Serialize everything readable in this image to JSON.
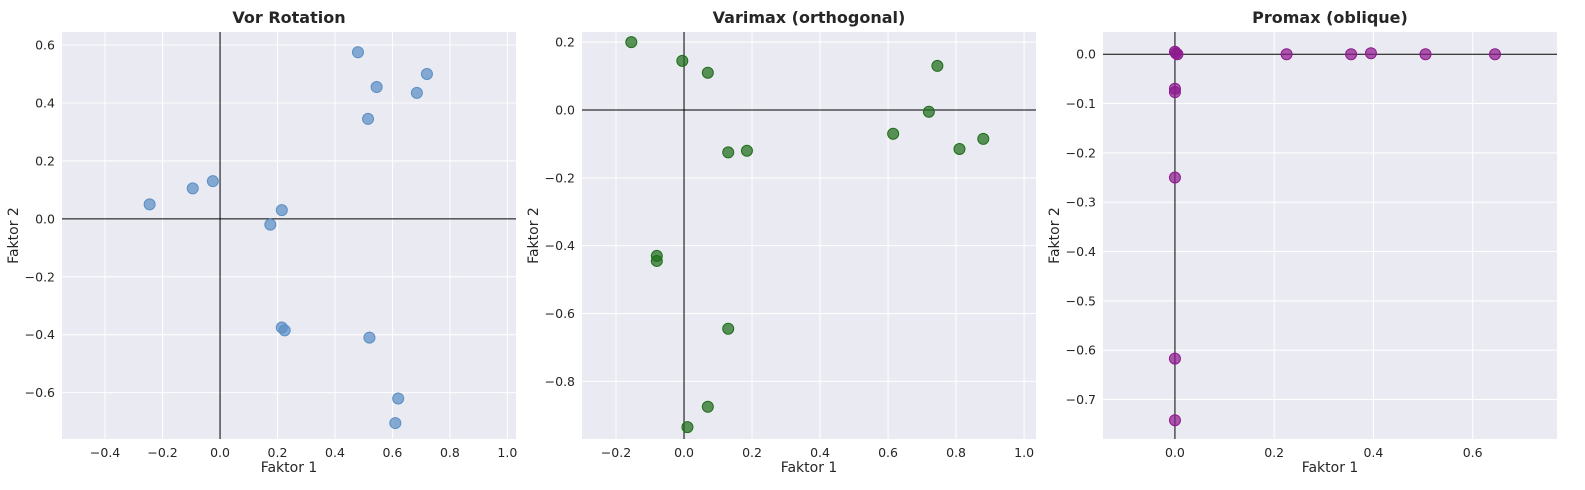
{
  "chart_data": [
    {
      "type": "scatter",
      "title": "Vor Rotation",
      "xlabel": "Faktor 1",
      "ylabel": "Faktor 2",
      "xlim": [
        -0.55,
        1.03
      ],
      "ylim": [
        -0.76,
        0.645
      ],
      "xticks": [
        -0.4,
        -0.2,
        0.0,
        0.2,
        0.4,
        0.6,
        0.8,
        1.0
      ],
      "yticks": [
        -0.6,
        -0.4,
        -0.2,
        0.0,
        0.2,
        0.4,
        0.6
      ],
      "xtick_labels": [
        "−0.4",
        "−0.2",
        "0.0",
        "0.2",
        "0.4",
        "0.6",
        "0.8",
        "1.0"
      ],
      "ytick_labels": [
        "−0.6",
        "−0.4",
        "−0.2",
        "0.0",
        "0.2",
        "0.4",
        "0.6"
      ],
      "grid": true,
      "color": "#5b8fc4",
      "x": [
        0.48,
        0.545,
        0.72,
        0.685,
        0.515,
        -0.025,
        -0.095,
        -0.245,
        0.215,
        0.175,
        0.215,
        0.225,
        0.52,
        0.62,
        0.61
      ],
      "y": [
        0.575,
        0.455,
        0.5,
        0.435,
        0.345,
        0.13,
        0.105,
        0.05,
        0.03,
        -0.02,
        -0.375,
        -0.385,
        -0.41,
        -0.62,
        -0.705
      ]
    },
    {
      "type": "scatter",
      "title": "Varimax (orthogonal)",
      "xlabel": "Faktor 1",
      "ylabel": "Faktor 2",
      "xlim": [
        -0.3,
        1.035
      ],
      "ylim": [
        -0.97,
        0.23
      ],
      "xticks": [
        -0.2,
        0.0,
        0.2,
        0.4,
        0.6,
        0.8,
        1.0
      ],
      "yticks": [
        -0.8,
        -0.6,
        -0.4,
        -0.2,
        0.0,
        0.2
      ],
      "xtick_labels": [
        "−0.2",
        "0.0",
        "0.2",
        "0.4",
        "0.6",
        "0.8",
        "1.0"
      ],
      "ytick_labels": [
        "−0.8",
        "−0.6",
        "−0.4",
        "−0.2",
        "0.0",
        "0.2"
      ],
      "grid": true,
      "color": "#1f6e1a",
      "x": [
        -0.155,
        -0.005,
        0.07,
        0.745,
        0.72,
        0.615,
        0.88,
        0.81,
        0.13,
        0.185,
        -0.08,
        -0.08,
        0.13,
        0.07,
        0.01
      ],
      "y": [
        0.2,
        0.145,
        0.11,
        0.13,
        -0.005,
        -0.07,
        -0.085,
        -0.115,
        -0.125,
        -0.12,
        -0.43,
        -0.445,
        -0.645,
        -0.875,
        -0.935
      ]
    },
    {
      "type": "scatter",
      "title": "Promax (oblique)",
      "xlabel": "Faktor 1",
      "ylabel": "Faktor 2",
      "xlim": [
        -0.145,
        0.77
      ],
      "ylim": [
        -0.78,
        0.045
      ],
      "xticks": [
        0.0,
        0.2,
        0.4,
        0.6
      ],
      "yticks": [
        -0.7,
        -0.6,
        -0.5,
        -0.4,
        -0.3,
        -0.2,
        -0.1,
        0.0
      ],
      "xtick_labels": [
        "0.0",
        "0.2",
        "0.4",
        "0.6"
      ],
      "ytick_labels": [
        "−0.7",
        "−0.6",
        "−0.5",
        "−0.4",
        "−0.3",
        "−0.2",
        "−0.1",
        "0.0"
      ],
      "grid": true,
      "color": "#8e1a8e",
      "x": [
        0.0,
        0.005,
        0.002,
        0.225,
        0.355,
        0.395,
        0.505,
        0.645,
        0.0,
        0.0,
        0.0,
        0.0,
        0.0
      ],
      "y": [
        0.005,
        0.0,
        0.002,
        0.0,
        0.0,
        0.002,
        0.0,
        0.0,
        -0.07,
        -0.077,
        -0.25,
        -0.617,
        -0.742
      ]
    }
  ]
}
